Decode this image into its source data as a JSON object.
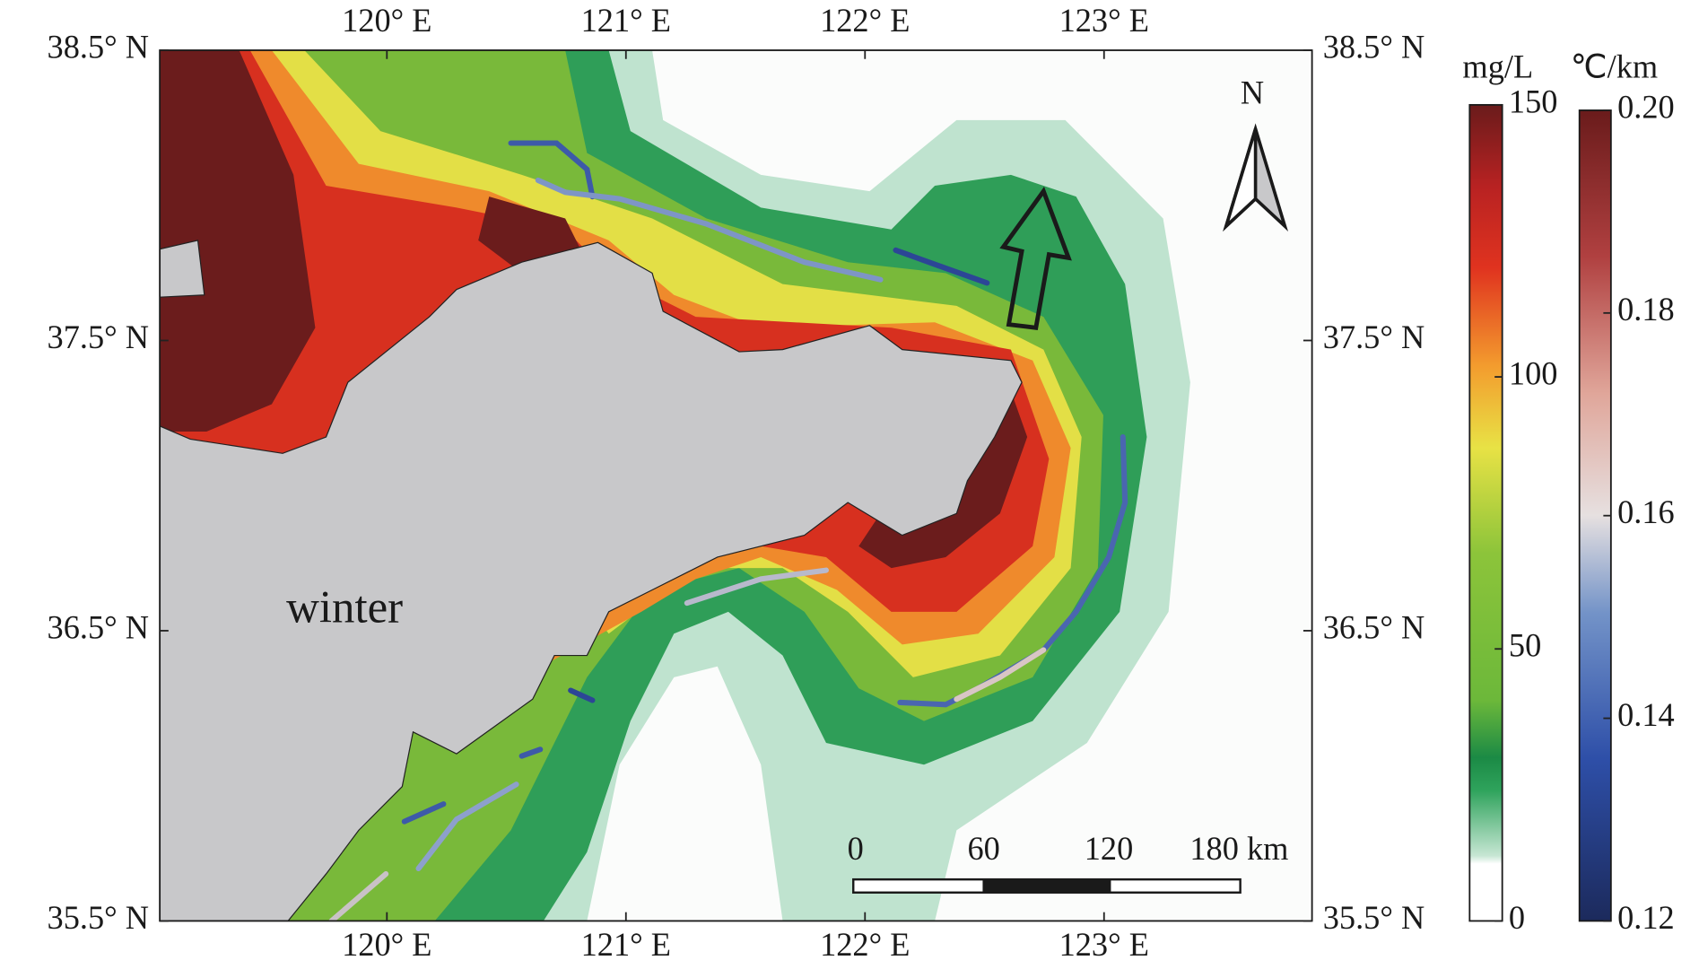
{
  "map": {
    "lon_range": [
      119.05,
      123.87
    ],
    "lat_range": [
      35.5,
      38.5
    ],
    "lon_ticks": [
      {
        "value": 120,
        "label": "120° E"
      },
      {
        "value": 121,
        "label": "121° E"
      },
      {
        "value": 122,
        "label": "122° E"
      },
      {
        "value": 123,
        "label": "123° E"
      }
    ],
    "lat_ticks": [
      {
        "value": 35.5,
        "label": "35.5° N"
      },
      {
        "value": 36.5,
        "label": "36.5° N"
      },
      {
        "value": 37.5,
        "label": "37.5° N"
      },
      {
        "value": 38.5,
        "label": "38.5° N"
      }
    ],
    "season_label": "winter",
    "north_label": "N",
    "scale_bar": {
      "labels": [
        "0",
        "60",
        "120",
        "180 km"
      ]
    },
    "colorbars": [
      {
        "unit": "mg/L",
        "range": [
          0,
          150
        ],
        "ticks": [
          0,
          50,
          100,
          150
        ]
      },
      {
        "unit": "℃/km",
        "range": [
          0.12,
          0.2
        ],
        "ticks": [
          0.12,
          0.14,
          0.16,
          0.18,
          {
            "value": 0.2,
            "label": "0.20"
          }
        ]
      }
    ]
  }
}
